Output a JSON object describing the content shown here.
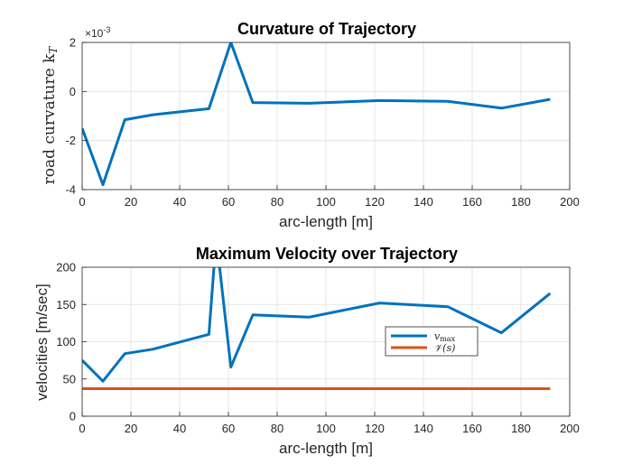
{
  "chart_data": [
    {
      "type": "line",
      "title": "Curvature of Trajectory",
      "xlabel": "arc-length [m]",
      "ylabel": "road curvature k",
      "ylabel_sub": "T",
      "y_exponent": "×10",
      "y_exponent_power": "-3",
      "xlim": [
        0,
        200
      ],
      "ylim": [
        -4,
        2
      ],
      "xticks": [
        0,
        20,
        40,
        60,
        80,
        100,
        120,
        140,
        160,
        180,
        200
      ],
      "yticks": [
        -4,
        -2,
        0,
        2
      ],
      "grid": true,
      "colors": {
        "line": "#0072BD"
      },
      "series": [
        {
          "x": [
            0,
            8.5,
            17.5,
            29,
            52,
            61,
            70,
            93,
            122,
            150,
            172,
            192
          ],
          "values": [
            -1.5,
            -3.8,
            -1.15,
            -0.95,
            -0.7,
            2.0,
            -0.45,
            -0.48,
            -0.37,
            -0.4,
            -0.68,
            -0.32
          ]
        }
      ]
    },
    {
      "type": "line",
      "title": "Maximum Velocity over Trajectory",
      "xlabel": "arc-length [m]",
      "ylabel": "velocities [m/sec]",
      "xlim": [
        0,
        200
      ],
      "ylim": [
        0,
        200
      ],
      "xticks": [
        0,
        20,
        40,
        60,
        80,
        100,
        120,
        140,
        160,
        180,
        200
      ],
      "yticks": [
        0,
        50,
        100,
        150,
        200
      ],
      "grid": true,
      "legend_position": "center-right",
      "series": [
        {
          "name": "v_max",
          "name_main": "v",
          "name_sub": "max",
          "color": "#0072BD",
          "x": [
            0,
            8.5,
            17.5,
            29,
            52,
            55,
            61,
            70,
            93,
            122,
            150,
            172,
            192
          ],
          "values": [
            75,
            47,
            84,
            90,
            110,
            240,
            66,
            136,
            133,
            152,
            147,
            112,
            165
          ]
        },
        {
          "name": "V(s)",
          "name_main": "𝒱(s)",
          "color": "#D95319",
          "x": [
            0,
            192
          ],
          "values": [
            37,
            37
          ]
        }
      ]
    }
  ]
}
